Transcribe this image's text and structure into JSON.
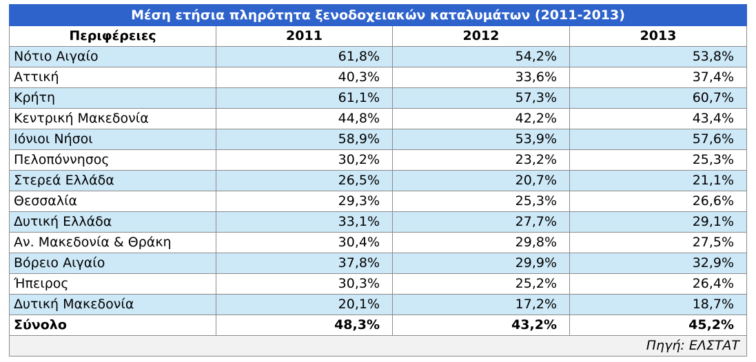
{
  "table": {
    "title": "Μέση ετήσια πληρότητα ξενοδοχειακών καταλυμάτων (2011-2013)",
    "headers": [
      "Περιφέρειες",
      "2011",
      "2012",
      "2013"
    ],
    "rows": [
      [
        "Νότιο Αιγαίο",
        "61,8%",
        "54,2%",
        "53,8%"
      ],
      [
        "Αττική",
        "40,3%",
        "33,6%",
        "37,4%"
      ],
      [
        "Κρήτη",
        "61,1%",
        "57,3%",
        "60,7%"
      ],
      [
        "Κεντρική Μακεδονία",
        "44,8%",
        "42,2%",
        "43,4%"
      ],
      [
        "Ιόνιοι Νήσοι",
        "58,9%",
        "53,9%",
        "57,6%"
      ],
      [
        "Πελοπόννησος",
        "30,2%",
        "23,2%",
        "25,3%"
      ],
      [
        "Στερεά Ελλάδα",
        "26,5%",
        "20,7%",
        "21,1%"
      ],
      [
        "Θεσσαλία",
        "29,3%",
        "25,3%",
        "26,6%"
      ],
      [
        "Δυτική Ελλάδα",
        "33,1%",
        "27,7%",
        "29,1%"
      ],
      [
        "Αν. Μακεδονία & Θράκη",
        "30,4%",
        "29,8%",
        "27,5%"
      ],
      [
        "Βόρειο Αιγαίο",
        "37,8%",
        "29,9%",
        "32,9%"
      ],
      [
        "Ήπειρος",
        "30,3%",
        "25,2%",
        "26,4%"
      ],
      [
        "Δυτική Μακεδονία",
        "20,1%",
        "17,2%",
        "18,7%"
      ]
    ],
    "total": [
      "Σύνολο",
      "48,3%",
      "43,2%",
      "45,2%"
    ],
    "source": "Πηγή: ΕΛΣΤΑΤ"
  }
}
